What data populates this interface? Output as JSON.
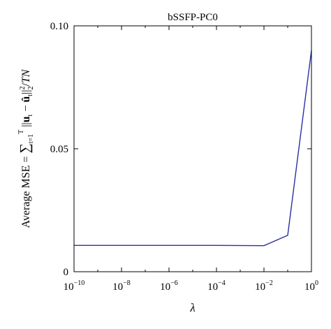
{
  "chart_data": {
    "type": "line",
    "title": "bSSFP-PC0",
    "xlabel": "λ",
    "ylabel": "Average MSE = ∑_{t=1}^{T} ||u_t − û_t||_2^2 / TN",
    "xscale": "log",
    "xlim": [
      1e-10,
      1
    ],
    "ylim": [
      0,
      0.1
    ],
    "x_ticks": [
      {
        "base": "10",
        "exp": "−10",
        "value": 1e-10
      },
      {
        "base": "10",
        "exp": "−8",
        "value": 1e-08
      },
      {
        "base": "10",
        "exp": "−6",
        "value": 1e-06
      },
      {
        "base": "10",
        "exp": "−4",
        "value": 0.0001
      },
      {
        "base": "10",
        "exp": "−2",
        "value": 0.01
      },
      {
        "base": "10",
        "exp": "0",
        "value": 1
      }
    ],
    "y_ticks": [
      {
        "label": "0",
        "value": 0
      },
      {
        "label": "0.05",
        "value": 0.05
      },
      {
        "label": "0.10",
        "value": 0.1
      }
    ],
    "grid": false,
    "legend": "none",
    "series": [
      {
        "color": "#2b2fa0",
        "x": [
          1e-10,
          1e-08,
          1e-06,
          0.0001,
          0.01,
          0.1,
          1
        ],
        "y": [
          0.0107,
          0.0107,
          0.0107,
          0.0107,
          0.0106,
          0.0148,
          0.09
        ]
      }
    ]
  }
}
